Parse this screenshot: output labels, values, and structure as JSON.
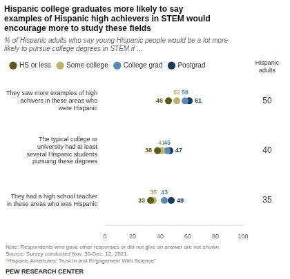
{
  "chart_data": {
    "type": "scatter",
    "orientation": "horizontal",
    "title": [
      "Hispanic college graduates more likely to say",
      "examples of Hispanic high achievers in STEM would",
      "encourage more to study these fields"
    ],
    "subtitle": [
      "% of Hispanic adults who say young Hispanic people would be a lot more",
      "likely to pursue college degrees in STEM if …"
    ],
    "categories": [
      "They saw more examples of high\nachivers in these areas who\nwere Hispanic",
      "The typical college or\nuniversity had at least\nseveral Hispanic students\npursuing these degrees",
      "They had a high school teacher\nin these areas who was Hispanic"
    ],
    "series": [
      {
        "name": "HS or less",
        "color": "#5c5c1e",
        "values": [
          46,
          38,
          33
        ]
      },
      {
        "name": "Some college",
        "color": "#b5b56b",
        "values": [
          52,
          41,
          35
        ]
      },
      {
        "name": "College grad",
        "color": "#5b8ab5",
        "values": [
          58,
          45,
          43
        ]
      },
      {
        "name": "Postgrad",
        "color": "#1a3a5c",
        "values": [
          61,
          47,
          48
        ]
      }
    ],
    "side_column": {
      "title": "Hispanic\nadults",
      "values": [
        50,
        40,
        35
      ]
    },
    "xlim": [
      0,
      100
    ],
    "xticks": [
      0,
      20,
      40,
      60,
      80,
      100
    ],
    "grid": false,
    "legend": "top",
    "data_labels": true,
    "notes": [
      "Note: Respondents who gave other responses or did not give an answer are not shown.",
      "Source: Survey conducted Nov. 30-Dec. 12, 2021.",
      "“Hispanic Americans’ Trust in and Engagement With Science”"
    ],
    "source": "PEW RESEARCH CENTER"
  }
}
